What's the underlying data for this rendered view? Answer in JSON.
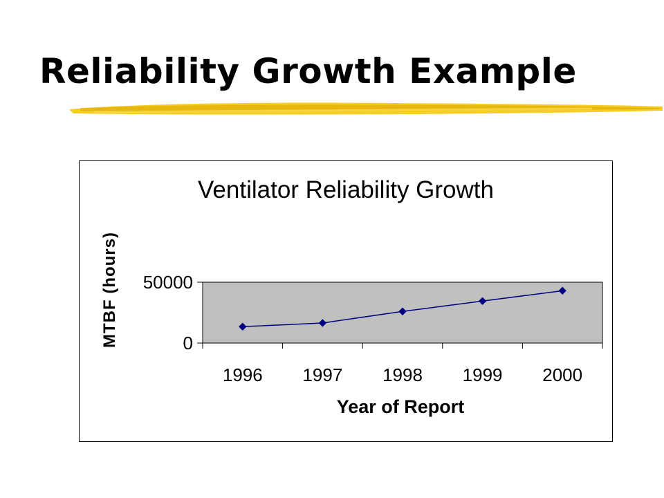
{
  "slide": {
    "title": "Reliability Growth Example",
    "underline_color": "#f2c500"
  },
  "chart_data": {
    "type": "line",
    "title": "Ventilator Reliability Growth",
    "xlabel": "Year of Report",
    "ylabel": "MTBF (hours)",
    "categories": [
      "1996",
      "1997",
      "1998",
      "1999",
      "2000"
    ],
    "series": [
      {
        "values": [
          13500,
          16500,
          26000,
          34500,
          43000
        ],
        "color": "#000080",
        "marker": "diamond"
      }
    ],
    "ylim": [
      0,
      50000
    ],
    "yticks": [
      0,
      50000
    ],
    "plot_background": "#c0c0c0",
    "grid": false,
    "legend": "none"
  }
}
